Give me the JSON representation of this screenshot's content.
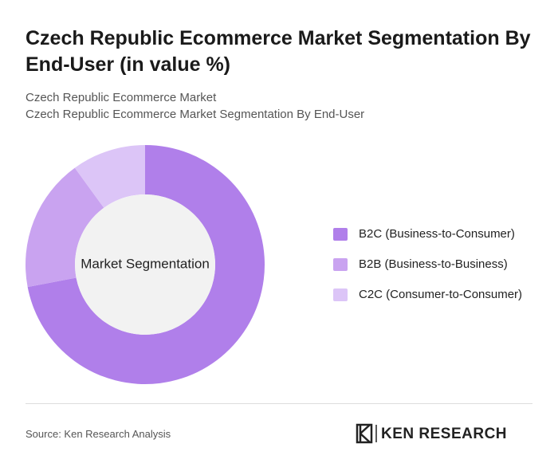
{
  "chart_data": {
    "type": "pie",
    "title": "Czech Republic Ecommerce Market Segmentation By End-User (in value %)",
    "subtitle": [
      "Czech Republic Ecommerce Market",
      "Czech Republic Ecommerce Market Segmentation By End-User"
    ],
    "center_label": "Market Segmentation",
    "categories": [
      "B2C (Business-to-Consumer)",
      "B2B (Business-to-Business)",
      "C2C (Consumer-to-Consumer)"
    ],
    "values": [
      72,
      18,
      10
    ],
    "colors": [
      "#b07fea",
      "#c9a3f0",
      "#dcc5f7"
    ],
    "source": "Source: Ken Research Analysis",
    "logo": "KEN RESEARCH"
  }
}
